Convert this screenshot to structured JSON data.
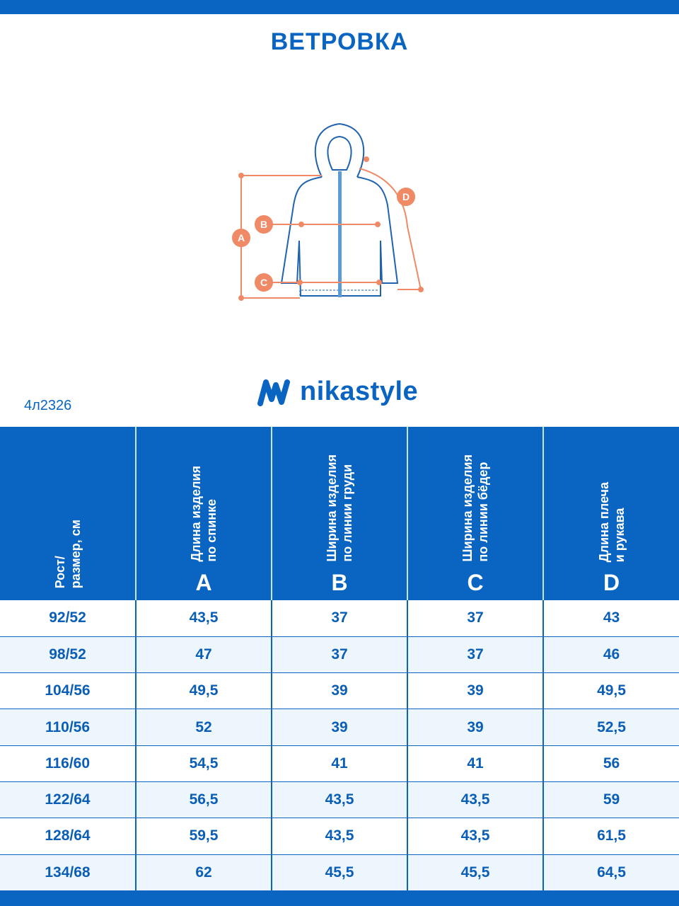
{
  "title": "ВЕТРОВКА",
  "diagram": {
    "labels": [
      "A",
      "B",
      "C",
      "D"
    ],
    "line_color": "#f08a66",
    "garment_color": "#1f63b0"
  },
  "brand": {
    "name": "nikastyle",
    "icon": "nikastyle-wave-logo-icon"
  },
  "article": "4л2326",
  "colors": {
    "primary": "#0a64c2",
    "row_alt": "#eef6fd"
  },
  "table": {
    "headers": [
      {
        "text": "Рост/\nразмер, см",
        "letter": ""
      },
      {
        "text": "Длина изделия\nпо спинке",
        "letter": "A"
      },
      {
        "text": "Ширина изделия\nпо линии груди",
        "letter": "B"
      },
      {
        "text": "Ширина изделия\nпо линии бёдер",
        "letter": "C"
      },
      {
        "text": "Длина плеча\nи рукава",
        "letter": "D"
      }
    ],
    "rows": [
      [
        "92/52",
        "43,5",
        "37",
        "37",
        "43"
      ],
      [
        "98/52",
        "47",
        "37",
        "37",
        "46"
      ],
      [
        "104/56",
        "49,5",
        "39",
        "39",
        "49,5"
      ],
      [
        "110/56",
        "52",
        "39",
        "39",
        "52,5"
      ],
      [
        "116/60",
        "54,5",
        "41",
        "41",
        "56"
      ],
      [
        "122/64",
        "56,5",
        "43,5",
        "43,5",
        "59"
      ],
      [
        "128/64",
        "59,5",
        "43,5",
        "43,5",
        "61,5"
      ],
      [
        "134/68",
        "62",
        "45,5",
        "45,5",
        "64,5"
      ]
    ]
  }
}
